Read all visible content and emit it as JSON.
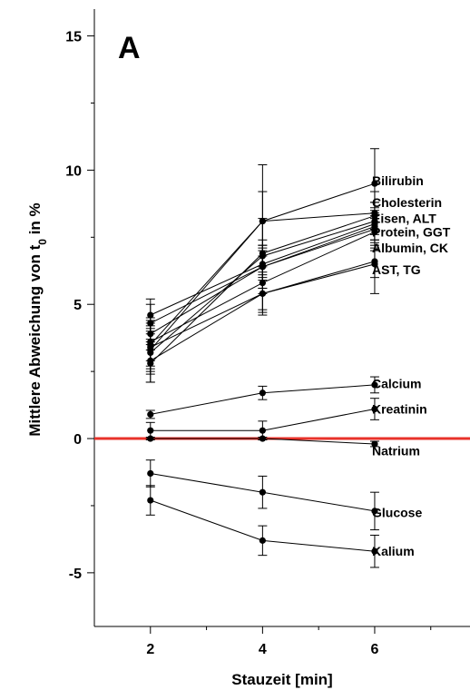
{
  "chart_data": {
    "type": "line",
    "panel_label": "A",
    "xlabel": "Stauzeit [min]",
    "ylabel_main": "Mittlere Abweichung von t",
    "ylabel_sub": "0",
    "ylabel_tail": " in %",
    "x": [
      2,
      4,
      6
    ],
    "xlim": [
      1,
      7.7
    ],
    "ylim": [
      -7,
      16
    ],
    "xticks": [
      2,
      4,
      6
    ],
    "xtick_labels": [
      "2",
      "4",
      "6"
    ],
    "yticks": [
      -5,
      0,
      5,
      10,
      15
    ],
    "ytick_labels": [
      "-5",
      "0",
      "5",
      "10",
      "15"
    ],
    "reference_line": {
      "y": 0,
      "color": "#e8322a"
    },
    "series": [
      {
        "values": [
          3.5,
          8.1,
          9.5
        ],
        "errors": [
          0.9,
          2.1,
          1.3
        ]
      },
      {
        "values": [
          3.3,
          8.1,
          8.4
        ],
        "errors": [
          0.9,
          1.1,
          0.8
        ]
      },
      {
        "values": [
          2.8,
          6.9,
          8.3
        ],
        "errors": [
          0.7,
          0.5,
          0.5
        ]
      },
      {
        "values": [
          3.2,
          6.8,
          8.1
        ],
        "errors": [
          0.7,
          1.4,
          0.7
        ]
      },
      {
        "values": [
          4.6,
          6.5,
          8.0
        ],
        "errors": [
          0.6,
          0.6,
          0.6
        ]
      },
      {
        "values": [
          4.3,
          6.4,
          7.9
        ],
        "errors": [
          0.7,
          0.8,
          0.6
        ]
      },
      {
        "values": [
          3.9,
          6.4,
          7.8
        ],
        "errors": [
          0.6,
          0.8,
          0.6
        ]
      },
      {
        "values": [
          3.6,
          5.8,
          7.7
        ],
        "errors": [
          0.7,
          1.0,
          0.6
        ]
      },
      {
        "values": [
          2.9,
          5.4,
          6.6
        ],
        "errors": [
          0.8,
          0.8,
          1.2
        ]
      },
      {
        "values": [
          3.4,
          5.4,
          6.5
        ],
        "errors": [
          0.7,
          0.7,
          0.5
        ]
      },
      {
        "values": [
          0.9,
          1.7,
          2.0
        ],
        "errors": [
          0.15,
          0.25,
          0.3
        ]
      },
      {
        "values": [
          0.3,
          0.3,
          1.1
        ],
        "errors": [
          0.3,
          0.35,
          0.4
        ]
      },
      {
        "values": [
          0.0,
          0.0,
          -0.2
        ],
        "errors": [
          0.05,
          0.05,
          0.1
        ]
      },
      {
        "values": [
          -1.3,
          -2.0,
          -2.7
        ],
        "errors": [
          0.5,
          0.6,
          0.7
        ]
      },
      {
        "values": [
          -2.3,
          -3.8,
          -4.2
        ],
        "errors": [
          0.55,
          0.55,
          0.6
        ]
      }
    ],
    "labels": [
      {
        "text": "Bilirubin",
        "y": 9.6
      },
      {
        "text": "Cholesterin",
        "y": 8.8
      },
      {
        "text": "Eisen, ALT",
        "y": 8.2
      },
      {
        "text": "Protein, GGT",
        "y": 7.7
      },
      {
        "text": "Albumin, CK",
        "y": 7.1
      },
      {
        "text": "AST, TG",
        "y": 6.3
      },
      {
        "text": "Calcium",
        "y": 2.05
      },
      {
        "text": "Kreatinin",
        "y": 1.1
      },
      {
        "text": "Natrium",
        "y": -0.45
      },
      {
        "text": "Glucose",
        "y": -2.75
      },
      {
        "text": "Kalium",
        "y": -4.2
      }
    ]
  }
}
